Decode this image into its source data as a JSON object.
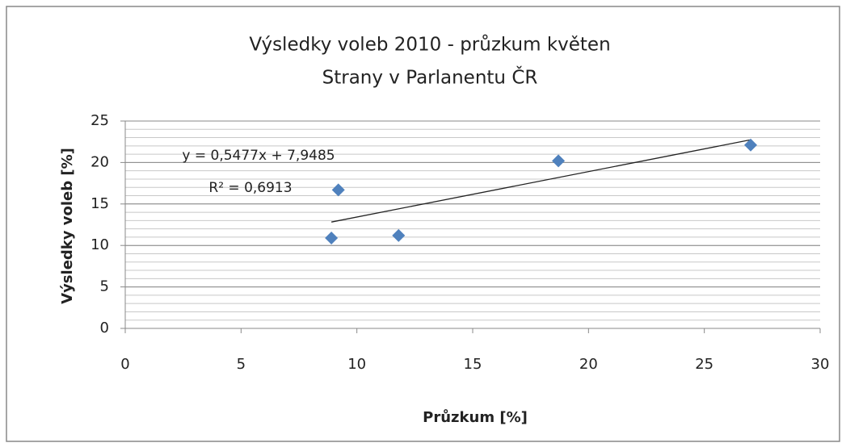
{
  "chart_data": {
    "type": "scatter",
    "title": "Výsledky voleb 2010 - průzkum květen",
    "subtitle": "Strany v Parlanentu ČR",
    "x_label": "Průzkum [%]",
    "y_label": "Výsledky voleb [%]",
    "x": [
      8.9,
      9.2,
      11.8,
      18.7,
      27.0
    ],
    "values": [
      10.9,
      16.7,
      11.2,
      20.2,
      22.1
    ],
    "color": "#4f81bd",
    "xlim": [
      0,
      30
    ],
    "ylim": [
      0,
      25
    ],
    "xticks": [
      0,
      5,
      10,
      15,
      20,
      25,
      30
    ],
    "yticks": [
      0,
      5,
      10,
      15,
      20,
      25
    ],
    "grid": true,
    "minor_grid": true,
    "trendline": {
      "slope": 0.5477,
      "intercept": 7.9485,
      "equation": "y = 0,5477x + 7,9485",
      "r_squared": "R² = 0,6913"
    }
  }
}
